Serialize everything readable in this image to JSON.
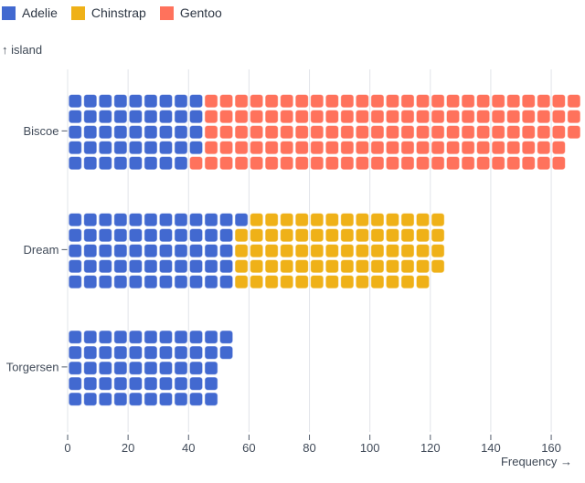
{
  "legend": {
    "items": [
      {
        "label": "Adelie",
        "color": "#4269d0"
      },
      {
        "label": "Chinstrap",
        "color": "#efb118"
      },
      {
        "label": "Gentoo",
        "color": "#ff725c"
      }
    ]
  },
  "y_axis": {
    "label": "↑ island"
  },
  "x_axis": {
    "label": "Frequency →",
    "ticks": [
      0,
      20,
      40,
      60,
      80,
      100,
      120,
      140,
      160
    ]
  },
  "colors": {
    "adelie": "#4269d0",
    "chinstrap": "#efb118",
    "gentoo": "#ff725c",
    "gridline": "#e1e4e9",
    "tick": "#525c6b",
    "axis_text": "#414b59"
  },
  "chart_data": {
    "type": "waffle",
    "orientation": "horizontal",
    "unit": 1,
    "rows_per_band": 5,
    "categories": [
      "Biscoe",
      "Dream",
      "Torgersen"
    ],
    "series": [
      {
        "name": "Adelie",
        "color": "#4269d0",
        "values": [
          44,
          56,
          52
        ]
      },
      {
        "name": "Chinstrap",
        "color": "#efb118",
        "values": [
          0,
          68,
          0
        ]
      },
      {
        "name": "Gentoo",
        "color": "#ff725c",
        "values": [
          124,
          0,
          0
        ]
      }
    ],
    "totals": {
      "Biscoe": 168,
      "Dream": 124,
      "Torgersen": 52
    },
    "xlabel": "Frequency",
    "ylabel": "island",
    "xlim": [
      0,
      170
    ],
    "grid": true,
    "legend_position": "top-left"
  }
}
